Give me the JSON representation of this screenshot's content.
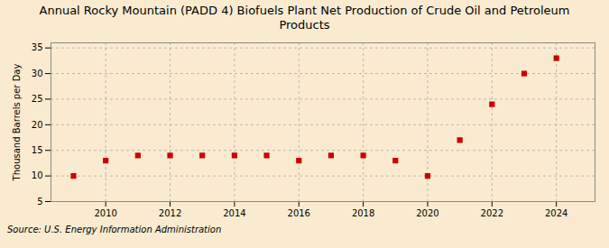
{
  "chart_data": {
    "type": "scatter",
    "title": "Annual Rocky Mountain (PADD 4) Biofuels Plant Net Production of Crude Oil and Petroleum\nProducts",
    "ylabel": "Thousand Barrels per Day",
    "source": "Source: U.S. Energy Information Administration",
    "x": [
      2009,
      2010,
      2011,
      2012,
      2013,
      2014,
      2015,
      2016,
      2017,
      2018,
      2019,
      2020,
      2021,
      2022,
      2023,
      2024
    ],
    "values": [
      10,
      13,
      14,
      14,
      14,
      14,
      14,
      13,
      14,
      14,
      13,
      10,
      17,
      24,
      30,
      33
    ],
    "color": "#cc0000",
    "marker": "square",
    "xlim": [
      2008.3,
      2025.2
    ],
    "ylim": [
      5,
      36
    ],
    "xticks": [
      2010,
      2012,
      2014,
      2016,
      2018,
      2020,
      2022,
      2024
    ],
    "yticks": [
      5,
      10,
      15,
      20,
      25,
      30,
      35
    ],
    "grid": true
  }
}
